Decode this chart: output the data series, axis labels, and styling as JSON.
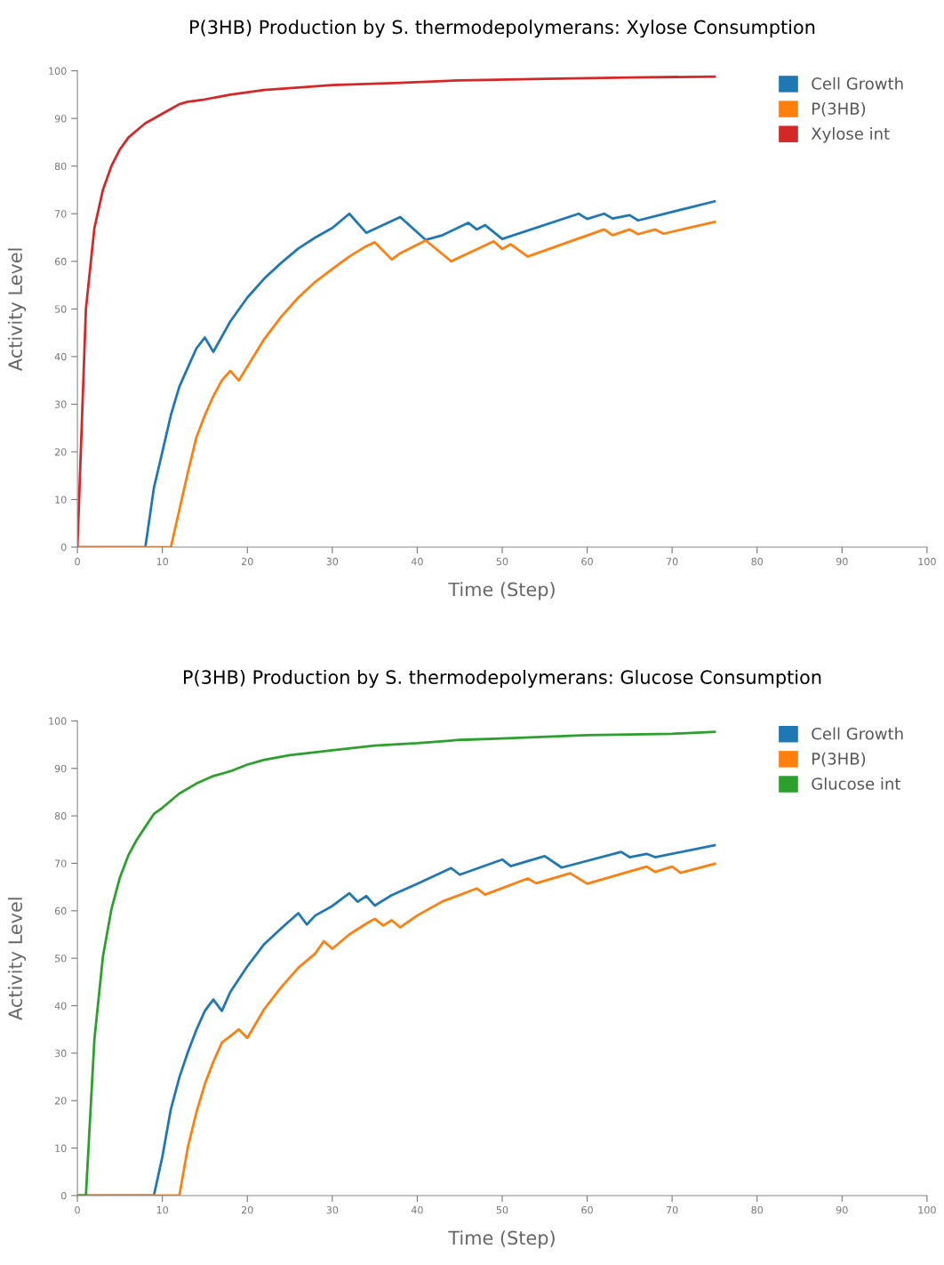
{
  "chart_data": [
    {
      "type": "line",
      "title": "P(3HB) Production by S. thermodepolymerans: Xylose Consumption",
      "xlabel": "Time (Step)",
      "ylabel": "Activity Level",
      "xlim": [
        0,
        100
      ],
      "xticks": [
        0,
        10,
        20,
        30,
        40,
        50,
        60,
        70,
        80,
        90,
        100
      ],
      "ylim": [
        0,
        100
      ],
      "yticks": [
        0,
        10,
        20,
        30,
        40,
        50,
        60,
        70,
        80,
        90,
        100
      ],
      "grid": false,
      "legend": "top right",
      "marker": "none",
      "line_style": "solid",
      "series": [
        {
          "name": "Cell Growth",
          "color": "#1f77b4",
          "x": [
            0,
            8,
            9,
            10,
            11,
            12,
            13,
            14,
            15,
            16,
            18,
            20,
            22,
            24,
            26,
            28,
            30,
            32,
            34,
            38,
            41,
            43,
            46,
            47,
            48,
            50,
            59,
            60,
            62,
            63,
            65,
            66,
            75
          ],
          "values": [
            0,
            0,
            12.4,
            20,
            27.7,
            33.7,
            37.7,
            41.7,
            44,
            41,
            47.4,
            52.4,
            56.4,
            59.7,
            62.7,
            65,
            67,
            70,
            66,
            69.3,
            64.5,
            65.5,
            68.1,
            66.7,
            67.6,
            64.7,
            70,
            68.9,
            70,
            69,
            69.7,
            68.6,
            72.6
          ]
        },
        {
          "name": "P(3HB)",
          "color": "#ff7f0e",
          "x": [
            0,
            11,
            13,
            14,
            15,
            16,
            17,
            18,
            19,
            22,
            24,
            26,
            28,
            30,
            32,
            34,
            35,
            37,
            38,
            41,
            44,
            49,
            50,
            51,
            53,
            62,
            63,
            65,
            66,
            68,
            69,
            75
          ],
          "values": [
            0,
            0,
            15.7,
            23,
            27.7,
            31.7,
            35,
            37,
            35,
            43.7,
            48.4,
            52.4,
            55.7,
            58.4,
            61,
            63.2,
            64,
            60.4,
            61.7,
            64.4,
            60,
            64.2,
            62.6,
            63.6,
            61,
            66.7,
            65.5,
            66.7,
            65.7,
            66.7,
            65.8,
            68.3
          ]
        },
        {
          "name": "Xylose int",
          "color": "#d62728",
          "x": [
            0,
            1,
            2,
            3,
            4,
            5,
            6,
            7,
            8,
            9,
            10,
            11,
            12,
            13,
            15,
            18,
            22,
            26,
            30,
            38,
            45,
            55,
            65,
            75
          ],
          "values": [
            0,
            50,
            67,
            75,
            80,
            83.5,
            86,
            87.5,
            89,
            90,
            91,
            92,
            93,
            93.5,
            94,
            95,
            96,
            96.5,
            97,
            97.5,
            98,
            98.3,
            98.6,
            98.8
          ]
        }
      ]
    },
    {
      "type": "line",
      "title": "P(3HB) Production by S. thermodepolymerans: Glucose Consumption",
      "xlabel": "Time (Step)",
      "ylabel": "Activity Level",
      "xlim": [
        0,
        100
      ],
      "xticks": [
        0,
        10,
        20,
        30,
        40,
        50,
        60,
        70,
        80,
        90,
        100
      ],
      "ylim": [
        0,
        100
      ],
      "yticks": [
        0,
        10,
        20,
        30,
        40,
        50,
        60,
        70,
        80,
        90,
        100
      ],
      "grid": false,
      "legend": "top right",
      "marker": "none",
      "line_style": "solid",
      "series": [
        {
          "name": "Cell Growth",
          "color": "#1f77b4",
          "x": [
            0,
            9,
            10,
            11,
            12,
            13,
            14,
            15,
            16,
            17,
            18,
            20,
            22,
            24,
            26,
            27,
            28,
            30,
            32,
            33,
            34,
            35,
            37,
            40,
            44,
            45,
            50,
            51,
            55,
            57,
            64,
            65,
            67,
            68,
            75
          ],
          "values": [
            0,
            0,
            8.2,
            18.2,
            24.9,
            30.2,
            34.9,
            38.9,
            41.3,
            38.9,
            42.9,
            48.3,
            53,
            56.3,
            59.5,
            57.1,
            59,
            61,
            63.7,
            61.9,
            63.1,
            61.1,
            63.3,
            65.7,
            69,
            67.6,
            70.8,
            69.4,
            71.5,
            69.1,
            72.4,
            71.3,
            72,
            71.3,
            73.8
          ]
        },
        {
          "name": "P(3HB)",
          "color": "#ff7f0e",
          "x": [
            0,
            12,
            13,
            14,
            15,
            16,
            17,
            19,
            20,
            22,
            24,
            26,
            28,
            29,
            30,
            32,
            34,
            35,
            36,
            37,
            38,
            40,
            43,
            47,
            48,
            53,
            54,
            58,
            60,
            67,
            68,
            70,
            71,
            75
          ],
          "values": [
            0,
            0,
            10.2,
            17.5,
            23.5,
            28.2,
            32.2,
            35,
            33.2,
            39.3,
            43.9,
            48,
            51,
            53.6,
            52,
            55,
            57.3,
            58.3,
            56.9,
            58,
            56.5,
            59,
            62,
            64.7,
            63.4,
            66.8,
            65.8,
            67.9,
            65.7,
            69.3,
            68.2,
            69.3,
            68,
            69.9
          ]
        },
        {
          "name": "Glucose int",
          "color": "#2ca02c",
          "x": [
            0,
            1,
            2,
            3,
            4,
            5,
            6,
            7,
            8,
            9,
            10,
            12,
            14,
            16,
            18,
            20,
            22,
            25,
            28,
            30,
            35,
            40,
            45,
            50,
            60,
            70,
            75
          ],
          "values": [
            0,
            0,
            32.9,
            50.3,
            60.3,
            67,
            71.7,
            75,
            77.7,
            80.4,
            81.7,
            84.7,
            86.8,
            88.4,
            89.4,
            90.8,
            91.8,
            92.8,
            93.4,
            93.8,
            94.8,
            95.3,
            96,
            96.3,
            97,
            97.3,
            97.7
          ]
        }
      ]
    }
  ]
}
